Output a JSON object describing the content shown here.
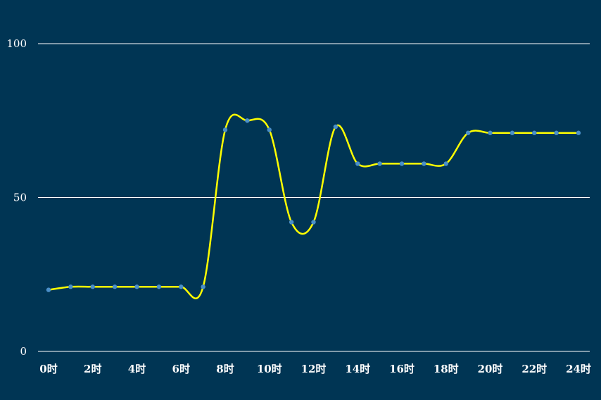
{
  "chart_data": {
    "type": "line",
    "x": [
      "0时",
      "1时",
      "2时",
      "3时",
      "4时",
      "5时",
      "6时",
      "7时",
      "8时",
      "9时",
      "10时",
      "11时",
      "12时",
      "13时",
      "14时",
      "15时",
      "16时",
      "17时",
      "18时",
      "19时",
      "20时",
      "21时",
      "22时",
      "23时",
      "24时"
    ],
    "x_tick_labels": [
      "0时",
      "2时",
      "4时",
      "6时",
      "8时",
      "10时",
      "12时",
      "14时",
      "16时",
      "18时",
      "20时",
      "22时",
      "24时"
    ],
    "series": [
      {
        "values": [
          20,
          21,
          21,
          21,
          21,
          21,
          21,
          21,
          72,
          75,
          72,
          42,
          42,
          73,
          61,
          61,
          61,
          61,
          61,
          71,
          71,
          71,
          71,
          71,
          71
        ]
      }
    ],
    "y_ticks": [
      0,
      50,
      100
    ],
    "ylim": [
      0,
      100
    ],
    "smooth": true,
    "grid": true,
    "colors": {
      "background": "#003554",
      "line": "#ffff00",
      "point": "#4a8fc9",
      "grid": "#ffffff",
      "text": "#ffffff"
    }
  }
}
